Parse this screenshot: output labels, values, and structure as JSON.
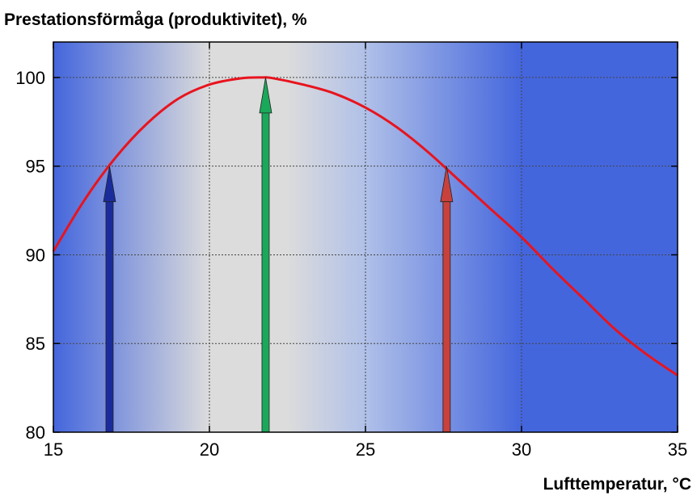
{
  "chart_data": {
    "type": "line",
    "title": "Prestationsförmåga (produktivitet), %",
    "xlabel": "Lufttemperatur, °C",
    "ylabel": "",
    "xlim": [
      15,
      35
    ],
    "ylim": [
      80,
      102
    ],
    "xticks": [
      15,
      20,
      25,
      30,
      35
    ],
    "yticks": [
      80,
      85,
      90,
      95,
      100
    ],
    "grid": true,
    "legend": "none",
    "series": [
      {
        "color": "#e8141e",
        "x": [
          15,
          16,
          17,
          18,
          19,
          20,
          21,
          21.7,
          22,
          23,
          24,
          25,
          26,
          27,
          28,
          29,
          30,
          31,
          32,
          33,
          34,
          35
        ],
        "y": [
          90.2,
          93.1,
          95.5,
          97.4,
          98.8,
          99.6,
          99.95,
          100.0,
          99.97,
          99.6,
          99.1,
          98.3,
          97.2,
          95.8,
          94.2,
          92.6,
          91.0,
          89.2,
          87.5,
          85.8,
          84.4,
          83.2
        ]
      }
    ],
    "arrows": [
      {
        "x": 16.8,
        "y_from": 80,
        "y_to": 95,
        "color": "#1a2c9c"
      },
      {
        "x": 21.8,
        "y_from": 80,
        "y_to": 100,
        "color": "#1aa85a"
      },
      {
        "x": 27.6,
        "y_from": 80,
        "y_to": 95,
        "color": "#c8413c"
      }
    ],
    "background_gradient": {
      "edge_color": "#4466dd",
      "center_color": "#dcdcdc",
      "stops_x": [
        15,
        20,
        22.5,
        25,
        30,
        35
      ],
      "stops_color": [
        "#4466dd",
        "#dcdcdc",
        "#dcdcdc",
        "#b0c0e8",
        "#4466dd",
        "#4466dd"
      ]
    }
  }
}
